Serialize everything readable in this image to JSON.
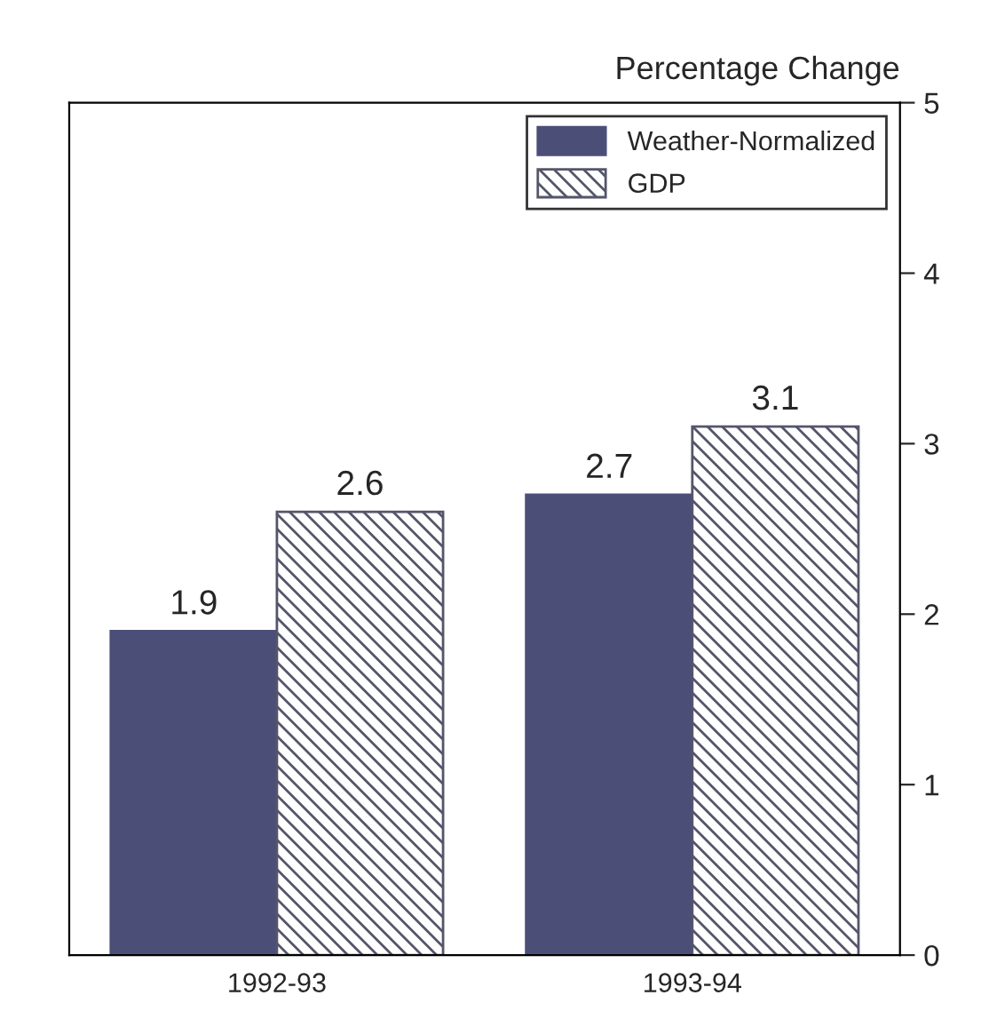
{
  "chart_data": {
    "type": "bar",
    "ylabel": "Percentage Change",
    "categories": [
      "1992-93",
      "1993-94"
    ],
    "series": [
      {
        "name": "Weather-Normalized",
        "color": "#4b4f78",
        "values": [
          1.9,
          2.7
        ]
      },
      {
        "name": "GDP",
        "color": "#55556a",
        "values": [
          2.6,
          3.1
        ]
      }
    ],
    "ylim": [
      0,
      5
    ],
    "yticks": [
      0,
      1,
      2,
      3,
      4,
      5
    ],
    "data_labels": true,
    "legend": "top right",
    "grid": false
  }
}
